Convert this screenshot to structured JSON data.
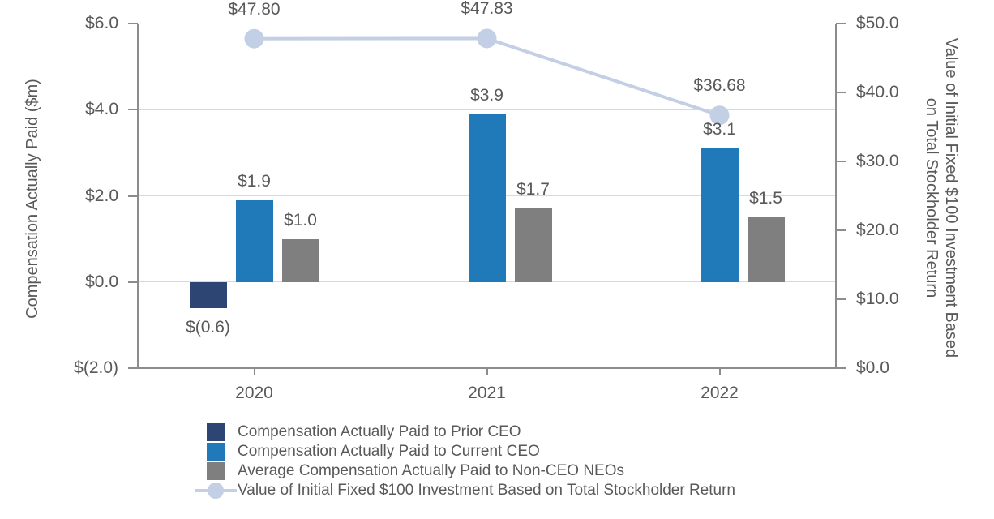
{
  "chart_data": [
    {
      "type": "bar",
      "title": "",
      "xlabel": "",
      "ylabel": "Compensation Actually Paid ($m)",
      "categories": [
        "2020",
        "2021",
        "2022"
      ],
      "series": [
        {
          "name": "Compensation Actually Paid to Prior CEO",
          "color": "#2C4573",
          "values": [
            -0.6,
            null,
            null
          ],
          "labels": [
            "$(0.6)",
            "",
            ""
          ]
        },
        {
          "name": "Compensation Actually Paid to Current CEO",
          "color": "#2079B8",
          "values": [
            1.9,
            3.9,
            3.1
          ],
          "labels": [
            "$1.9",
            "$3.9",
            "$3.1"
          ]
        },
        {
          "name": "Average Compensation Actually Paid to Non-CEO NEOs",
          "color": "#7F7F7F",
          "values": [
            1.0,
            1.7,
            1.5
          ],
          "labels": [
            "$1.0",
            "$1.7",
            "$1.5"
          ]
        }
      ],
      "ylim": [
        -2,
        6
      ],
      "yticks": [
        {
          "v": 6,
          "label": "$6.0"
        },
        {
          "v": 4,
          "label": "$4.0"
        },
        {
          "v": 2,
          "label": "$2.0"
        },
        {
          "v": 0,
          "label": "$0.0"
        },
        {
          "v": -2,
          "label": "$(2.0)"
        }
      ],
      "grid": true,
      "legend_position": "bottom"
    },
    {
      "type": "line",
      "ylabel": "Value of Initial Fixed $100 Investment Based on Total Stockholder Return",
      "ylabel_lines": [
        "Value of Initial Fixed $100 Investment Based",
        "on Total Stockholder Return"
      ],
      "categories": [
        "2020",
        "2021",
        "2022"
      ],
      "series": [
        {
          "name": "Value of Initial Fixed $100 Investment Based on Total Stockholder Return",
          "color": "#C3CFE4",
          "values": [
            47.8,
            47.83,
            36.68
          ],
          "labels": [
            "$47.80",
            "$47.83",
            "$36.68"
          ]
        }
      ],
      "ylim": [
        0,
        50
      ],
      "yticks": [
        {
          "v": 50,
          "label": "$50.0"
        },
        {
          "v": 40,
          "label": "$40.0"
        },
        {
          "v": 30,
          "label": "$30.0"
        },
        {
          "v": 20,
          "label": "$20.0"
        },
        {
          "v": 10,
          "label": "$10.0"
        },
        {
          "v": 0,
          "label": "$0.0"
        }
      ]
    }
  ],
  "legend": {
    "items": [
      {
        "label": "Compensation Actually Paid to Prior CEO",
        "marker": "square",
        "color": "#2C4573"
      },
      {
        "label": "Compensation Actually Paid to Current CEO",
        "marker": "square",
        "color": "#2079B8"
      },
      {
        "label": "Average Compensation Actually Paid to Non-CEO NEOs",
        "marker": "square",
        "color": "#7F7F7F"
      },
      {
        "label": "Value of Initial Fixed $100 Investment Based on Total Stockholder Return",
        "marker": "line-circle",
        "color": "#C3CFE4"
      }
    ]
  },
  "colors": {
    "text": "#595959",
    "gridline": "#D9D9D9",
    "axis_line": "#8C8C8C",
    "background": "#FFFFFF"
  }
}
